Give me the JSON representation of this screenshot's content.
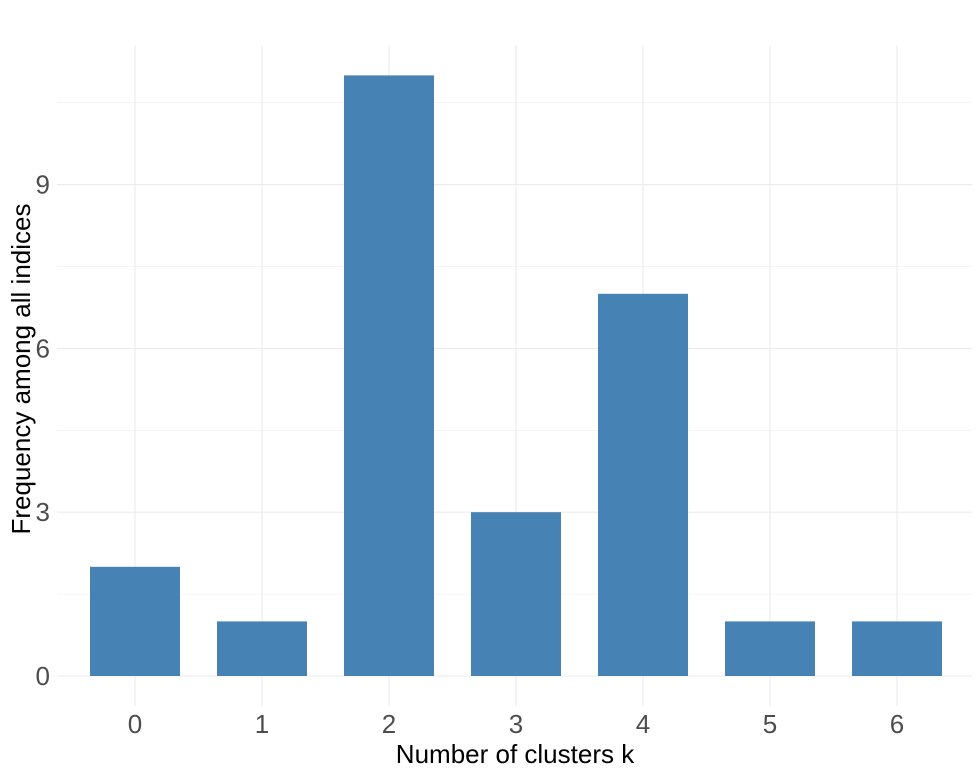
{
  "chart_data": {
    "type": "bar",
    "categories": [
      "0",
      "1",
      "2",
      "3",
      "4",
      "5",
      "6"
    ],
    "values": [
      2,
      1,
      11,
      3,
      7,
      1,
      1
    ],
    "title": "",
    "xlabel": "Number of clusters k",
    "ylabel": "Frequency among all indices",
    "ylim": [
      0,
      11.6
    ],
    "yticks": [
      0,
      3,
      6,
      9
    ],
    "grid": true,
    "bar_color": "#4682B4"
  }
}
